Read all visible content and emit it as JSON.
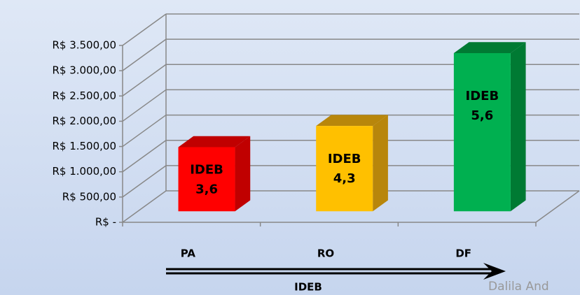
{
  "chart_data": {
    "type": "bar3d",
    "categories": [
      "PA",
      "RO",
      "DF"
    ],
    "values": [
      1270,
      1690,
      3130
    ],
    "colors": [
      "#ff0000",
      "#ffc000",
      "#00b050"
    ],
    "side_colors": [
      "#c00000",
      "#b8860b",
      "#007a33"
    ],
    "bar_labels": [
      [
        "IDEB",
        "3,6"
      ],
      [
        "IDEB",
        "4,3"
      ],
      [
        "IDEB",
        "5,6"
      ]
    ],
    "x_label": "IDEB",
    "watermark": "Dalila And",
    "ylim": [
      0,
      3500
    ],
    "yticks": [
      {
        "value": 0,
        "label": "R$ -"
      },
      {
        "value": 500,
        "label": "R$ 500,00"
      },
      {
        "value": 1000,
        "label": "R$ 1.000,00"
      },
      {
        "value": 1500,
        "label": "R$ 1.500,00"
      },
      {
        "value": 2000,
        "label": "R$ 2.000,00"
      },
      {
        "value": 2500,
        "label": "R$ 2.500,00"
      },
      {
        "value": 3000,
        "label": "R$ 3.000,00"
      },
      {
        "value": 3500,
        "label": "R$ 3.500,00"
      }
    ],
    "grid": true
  }
}
